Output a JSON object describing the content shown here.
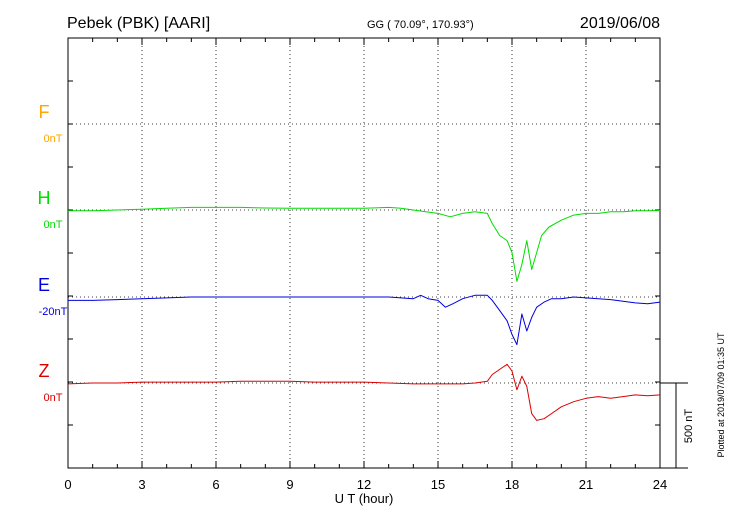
{
  "header": {
    "station": "Pebek (PBK)  [AARI]",
    "coords": "GG ( 70.09°, 170.93°)",
    "date": "2019/06/08"
  },
  "footer": {
    "xlabel": "U T (hour)",
    "plotted_note": "Plotted at 2019/07/09 01:35 UT",
    "scale_label": "500 nT"
  },
  "chart_data": {
    "type": "line",
    "title": "Pebek (PBK)  [AARI]",
    "xlabel": "U T (hour)",
    "xlim": [
      0,
      24
    ],
    "xticks": [
      0,
      3,
      6,
      9,
      12,
      15,
      18,
      21,
      24
    ],
    "grid": true,
    "scale_bar_nT": 500,
    "series": [
      {
        "name": "F",
        "baseline_label": "0nT",
        "color": "#ffa500",
        "points": []
      },
      {
        "name": "H",
        "baseline_label": "0nT",
        "color": "#00dd00",
        "points": [
          [
            0,
            -5
          ],
          [
            1,
            -5
          ],
          [
            2,
            0
          ],
          [
            3,
            5
          ],
          [
            4,
            10
          ],
          [
            5,
            15
          ],
          [
            6,
            15
          ],
          [
            7,
            15
          ],
          [
            8,
            12
          ],
          [
            9,
            10
          ],
          [
            10,
            10
          ],
          [
            11,
            10
          ],
          [
            12,
            10
          ],
          [
            13,
            15
          ],
          [
            13.5,
            10
          ],
          [
            14,
            0
          ],
          [
            14.5,
            -10
          ],
          [
            15,
            -20
          ],
          [
            15.5,
            -40
          ],
          [
            16,
            -20
          ],
          [
            16.5,
            -10
          ],
          [
            17,
            -20
          ],
          [
            17.2,
            -80
          ],
          [
            17.5,
            -150
          ],
          [
            17.8,
            -180
          ],
          [
            18,
            -250
          ],
          [
            18.2,
            -420
          ],
          [
            18.4,
            -320
          ],
          [
            18.6,
            -180
          ],
          [
            18.8,
            -350
          ],
          [
            19,
            -250
          ],
          [
            19.2,
            -150
          ],
          [
            19.5,
            -100
          ],
          [
            20,
            -60
          ],
          [
            20.5,
            -30
          ],
          [
            21,
            -20
          ],
          [
            21.5,
            -20
          ],
          [
            22,
            -10
          ],
          [
            22.5,
            -10
          ],
          [
            23,
            -5
          ],
          [
            23.5,
            -5
          ],
          [
            24,
            -3
          ]
        ]
      },
      {
        "name": "E",
        "baseline_label": "-20nT",
        "color": "#0000dd",
        "points": [
          [
            0,
            -20
          ],
          [
            1,
            -20
          ],
          [
            2,
            -15
          ],
          [
            3,
            -10
          ],
          [
            4,
            -5
          ],
          [
            5,
            0
          ],
          [
            6,
            0
          ],
          [
            7,
            0
          ],
          [
            8,
            0
          ],
          [
            9,
            0
          ],
          [
            10,
            0
          ],
          [
            11,
            0
          ],
          [
            12,
            0
          ],
          [
            13,
            0
          ],
          [
            13.5,
            -5
          ],
          [
            14,
            -10
          ],
          [
            14.3,
            10
          ],
          [
            14.6,
            -10
          ],
          [
            15,
            -20
          ],
          [
            15.3,
            -60
          ],
          [
            15.6,
            -40
          ],
          [
            16,
            -10
          ],
          [
            16.5,
            10
          ],
          [
            17,
            10
          ],
          [
            17.2,
            -20
          ],
          [
            17.5,
            -80
          ],
          [
            17.8,
            -140
          ],
          [
            18,
            -220
          ],
          [
            18.2,
            -280
          ],
          [
            18.4,
            -100
          ],
          [
            18.6,
            -200
          ],
          [
            18.8,
            -120
          ],
          [
            19,
            -60
          ],
          [
            19.3,
            -30
          ],
          [
            19.6,
            -10
          ],
          [
            20,
            -10
          ],
          [
            20.5,
            0
          ],
          [
            21,
            -5
          ],
          [
            21.5,
            -10
          ],
          [
            22,
            -15
          ],
          [
            22.5,
            -25
          ],
          [
            23,
            -35
          ],
          [
            23.5,
            -40
          ],
          [
            24,
            -30
          ]
        ]
      },
      {
        "name": "Z",
        "baseline_label": "0nT",
        "color": "#dd0000",
        "points": [
          [
            0,
            -5
          ],
          [
            1,
            0
          ],
          [
            2,
            0
          ],
          [
            3,
            5
          ],
          [
            4,
            5
          ],
          [
            5,
            5
          ],
          [
            6,
            5
          ],
          [
            7,
            10
          ],
          [
            8,
            10
          ],
          [
            9,
            10
          ],
          [
            10,
            5
          ],
          [
            11,
            5
          ],
          [
            12,
            5
          ],
          [
            13,
            0
          ],
          [
            14,
            -5
          ],
          [
            15,
            -5
          ],
          [
            16,
            -5
          ],
          [
            16.5,
            0
          ],
          [
            17,
            10
          ],
          [
            17.2,
            50
          ],
          [
            17.5,
            80
          ],
          [
            17.8,
            110
          ],
          [
            18,
            70
          ],
          [
            18.2,
            -40
          ],
          [
            18.4,
            40
          ],
          [
            18.6,
            -20
          ],
          [
            18.8,
            -180
          ],
          [
            19,
            -220
          ],
          [
            19.3,
            -210
          ],
          [
            19.6,
            -180
          ],
          [
            20,
            -140
          ],
          [
            20.5,
            -110
          ],
          [
            21,
            -90
          ],
          [
            21.5,
            -80
          ],
          [
            22,
            -90
          ],
          [
            22.5,
            -80
          ],
          [
            23,
            -70
          ],
          [
            23.5,
            -75
          ],
          [
            24,
            -70
          ]
        ]
      }
    ]
  }
}
